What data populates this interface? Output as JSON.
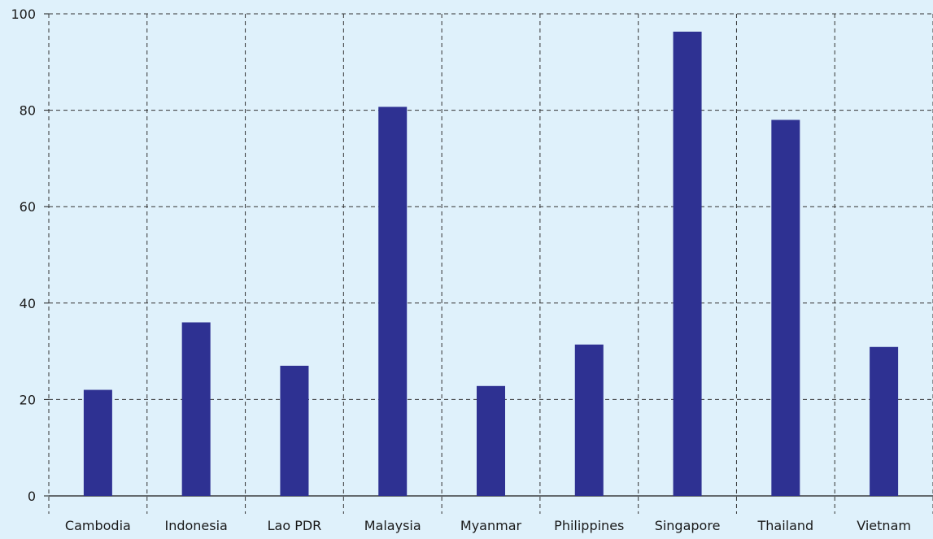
{
  "colors": {
    "background": "#dff1fb",
    "bar": "#2e3192",
    "grid": "#333333",
    "axis": "#1a1a1a"
  },
  "chart_data": {
    "type": "bar",
    "title": "",
    "xlabel": "",
    "ylabel": "",
    "categories": [
      "Cambodia",
      "Indonesia",
      "Lao PDR",
      "Malaysia",
      "Myanmar",
      "Philippines",
      "Singapore",
      "Thailand",
      "Vietnam"
    ],
    "values": [
      22,
      36,
      27,
      80.7,
      22.8,
      31.4,
      96.3,
      78,
      30.9
    ],
    "ylim": [
      0,
      100
    ],
    "yticks": [
      0,
      20,
      40,
      60,
      80,
      100
    ],
    "grid": true,
    "legend": "none"
  }
}
